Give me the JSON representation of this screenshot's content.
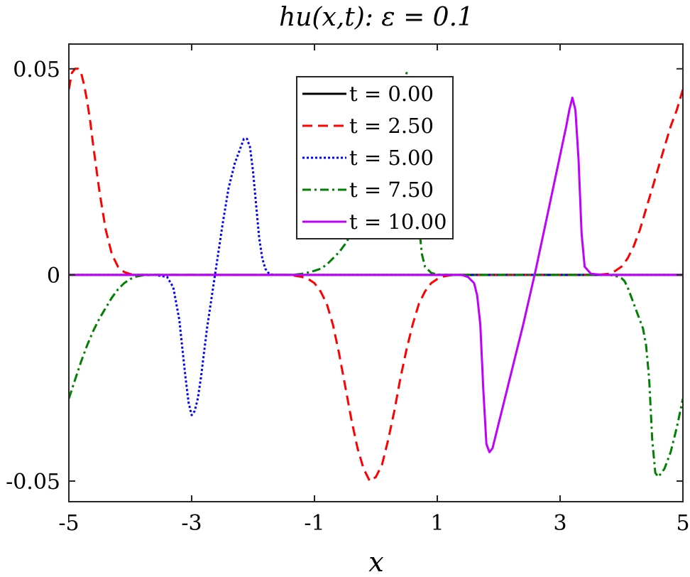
{
  "chart_data": {
    "type": "line",
    "title": "hu(x,t): ε = 0.1",
    "xlabel": "x",
    "ylabel": "",
    "xlim": [
      -5,
      5
    ],
    "ylim": [
      -0.055,
      0.056
    ],
    "xticks": [
      -5,
      -3,
      -1,
      1,
      3,
      5
    ],
    "xtick_labels": [
      "-5",
      "-3",
      "-1",
      "1",
      "3",
      "5"
    ],
    "yticks": [
      -0.05,
      0,
      0.05
    ],
    "ytick_labels": [
      "-0.05",
      "0",
      "0.05"
    ],
    "grid": false,
    "legend_position": "top-center",
    "series": [
      {
        "name": "t = 0.00",
        "color": "#000000",
        "style": "solid",
        "x": [
          -5,
          5
        ],
        "y": [
          0,
          0
        ]
      },
      {
        "name": "t = 2.50",
        "color": "#ff0000",
        "style": "dashed",
        "x": [
          -5.0,
          -4.95,
          -4.9,
          -4.85,
          -4.8,
          -4.75,
          -4.7,
          -4.65,
          -4.6,
          -4.5,
          -4.4,
          -4.3,
          -4.2,
          -4.1,
          -4.0,
          -3.9,
          -3.8,
          -3.6,
          -3.4,
          -3.0,
          -2.0,
          -1.4,
          -1.2,
          -1.1,
          -1.0,
          -0.9,
          -0.8,
          -0.7,
          -0.6,
          -0.5,
          -0.4,
          -0.3,
          -0.2,
          -0.1,
          0.0,
          0.1,
          0.2,
          0.3,
          0.4,
          0.5,
          0.6,
          0.7,
          0.8,
          0.9,
          1.0,
          1.1,
          1.2,
          1.3,
          1.4,
          1.6,
          2.0,
          3.0,
          3.6,
          3.8,
          3.9,
          4.0,
          4.1,
          4.2,
          4.3,
          4.4,
          4.5,
          4.6,
          4.7,
          4.8,
          4.9,
          5.0
        ],
        "y": [
          0.045,
          0.049,
          0.05,
          0.05,
          0.049,
          0.046,
          0.042,
          0.037,
          0.031,
          0.02,
          0.011,
          0.005,
          0.002,
          0.0007,
          0.0002,
          0.0,
          0.0,
          0.0,
          0.0,
          0.0,
          0.0,
          0.0,
          -0.0005,
          -0.001,
          -0.002,
          -0.004,
          -0.007,
          -0.012,
          -0.019,
          -0.027,
          -0.035,
          -0.042,
          -0.047,
          -0.05,
          -0.049,
          -0.046,
          -0.04,
          -0.033,
          -0.025,
          -0.018,
          -0.012,
          -0.007,
          -0.004,
          -0.002,
          -0.001,
          -0.0004,
          -0.0001,
          0.0,
          0.0,
          0.0,
          0.0,
          0.0,
          0.0,
          0.0003,
          0.001,
          0.002,
          0.004,
          0.007,
          0.011,
          0.016,
          0.021,
          0.026,
          0.031,
          0.036,
          0.04,
          0.045
        ]
      },
      {
        "name": "t = 5.00",
        "color": "#0000ff",
        "style": "dotted",
        "x": [
          -5.0,
          -4.0,
          -3.6,
          -3.4,
          -3.3,
          -3.2,
          -3.15,
          -3.1,
          -3.05,
          -3.0,
          -2.95,
          -2.9,
          -2.85,
          -2.8,
          -2.75,
          -2.7,
          -2.6,
          -2.5,
          -2.4,
          -2.3,
          -2.2,
          -2.15,
          -2.1,
          -2.05,
          -2.0,
          -1.95,
          -1.9,
          -1.85,
          -1.8,
          -1.75,
          -1.7,
          -1.6,
          -1.4,
          -1.0,
          5.0
        ],
        "y": [
          0,
          0,
          0,
          -0.0005,
          -0.003,
          -0.011,
          -0.018,
          -0.025,
          -0.031,
          -0.034,
          -0.033,
          -0.03,
          -0.025,
          -0.019,
          -0.013,
          -0.008,
          0.002,
          0.012,
          0.021,
          0.027,
          0.031,
          0.033,
          0.033,
          0.031,
          0.025,
          0.017,
          0.009,
          0.004,
          0.0015,
          0.0005,
          0.0001,
          0.0,
          0.0,
          0.0,
          0
        ]
      },
      {
        "name": "t = 7.50",
        "color": "#007f00",
        "style": "dashdot",
        "x": [
          -5.0,
          -4.9,
          -4.8,
          -4.7,
          -4.6,
          -4.5,
          -4.4,
          -4.3,
          -4.2,
          -4.1,
          -4.0,
          -3.9,
          -3.8,
          -3.6,
          -3.4,
          -3.0,
          -1.6,
          -1.4,
          -1.3,
          -1.2,
          -1.1,
          -1.0,
          -0.9,
          -0.8,
          -0.7,
          -0.6,
          -0.5,
          -0.4,
          -0.3,
          -0.2,
          -0.1,
          0.0,
          0.1,
          0.2,
          0.3,
          0.35,
          0.4,
          0.45,
          0.5,
          0.55,
          0.6,
          0.65,
          0.7,
          0.75,
          0.8,
          0.9,
          1.0,
          1.2,
          2.0,
          3.8,
          3.9,
          4.0,
          4.05,
          4.1,
          4.15,
          4.2,
          4.25,
          4.3,
          4.35,
          4.4,
          4.45,
          4.5,
          4.55,
          4.6,
          4.7,
          4.8,
          4.9,
          5.0
        ],
        "y": [
          -0.03,
          -0.0255,
          -0.021,
          -0.017,
          -0.0135,
          -0.0105,
          -0.008,
          -0.0055,
          -0.0035,
          -0.002,
          -0.001,
          -0.0004,
          -0.0001,
          0.0,
          0.0,
          0.0,
          0.0,
          0.0,
          0.0001,
          0.0003,
          0.0006,
          0.001,
          0.0015,
          0.0025,
          0.004,
          0.0055,
          0.0075,
          0.01,
          0.013,
          0.016,
          0.0195,
          0.023,
          0.027,
          0.031,
          0.036,
          0.039,
          0.042,
          0.046,
          0.049,
          0.048,
          0.04,
          0.025,
          0.012,
          0.005,
          0.002,
          0.0005,
          0.0001,
          0.0,
          0.0,
          0.0,
          -0.0002,
          -0.0008,
          -0.0015,
          -0.003,
          -0.005,
          -0.007,
          -0.009,
          -0.011,
          -0.013,
          -0.017,
          -0.025,
          -0.04,
          -0.048,
          -0.049,
          -0.047,
          -0.043,
          -0.037,
          -0.03
        ]
      },
      {
        "name": "t = 10.00",
        "color": "#bf00ff",
        "style": "solid",
        "x": [
          -5.0,
          1.2,
          1.4,
          1.5,
          1.6,
          1.65,
          1.7,
          1.75,
          1.8,
          1.85,
          1.9,
          2.0,
          2.2,
          2.4,
          2.6,
          2.8,
          3.0,
          3.1,
          3.15,
          3.2,
          3.25,
          3.3,
          3.35,
          3.4,
          3.5,
          3.7,
          5.0
        ],
        "y": [
          0,
          0,
          0.0,
          -0.0005,
          -0.002,
          -0.005,
          -0.012,
          -0.028,
          -0.041,
          -0.043,
          -0.042,
          -0.036,
          -0.024,
          -0.012,
          0.001,
          0.015,
          0.029,
          0.036,
          0.04,
          0.043,
          0.04,
          0.028,
          0.01,
          0.002,
          0.0003,
          0.0,
          0
        ]
      }
    ]
  }
}
